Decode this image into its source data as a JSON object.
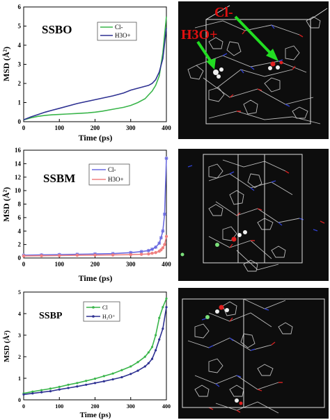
{
  "figure": {
    "panels": [
      {
        "title": "SSBO",
        "xlabel": "Time (ps)",
        "ylabel": "MSD (Å²)",
        "legend": [
          "Cl-",
          "H3O+"
        ],
        "image_labels": [
          "Cl-",
          "H3O+"
        ]
      },
      {
        "title": "SSBM",
        "xlabel": "Time (ps)",
        "ylabel": "MSD (Å²)",
        "legend": [
          "Cl-",
          "H3O+"
        ],
        "image_labels": []
      },
      {
        "title": "SSBP",
        "xlabel": "Time (ps)",
        "ylabel": "MSD (Å²)",
        "legend": [
          "Cl",
          "H₃O⁺"
        ],
        "image_labels": []
      }
    ]
  },
  "chart_data": [
    {
      "type": "line",
      "title": "SSBO",
      "xlabel": "Time (ps)",
      "ylabel": "MSD (Å²)",
      "xlim": [
        0,
        400
      ],
      "ylim": [
        0,
        6
      ],
      "xticks": [
        0,
        100,
        200,
        300,
        400
      ],
      "yticks": [
        0,
        1,
        2,
        3,
        4,
        5,
        6
      ],
      "grid": false,
      "legend_position": "top-right",
      "series": [
        {
          "name": "Cl-",
          "color": "#39b54a",
          "marker": "none",
          "x": [
            0,
            20,
            40,
            60,
            80,
            100,
            120,
            150,
            180,
            200,
            220,
            250,
            280,
            300,
            320,
            340,
            350,
            360,
            370,
            380,
            390,
            400
          ],
          "y": [
            0.1,
            0.2,
            0.28,
            0.33,
            0.36,
            0.38,
            0.4,
            0.43,
            0.46,
            0.5,
            0.55,
            0.65,
            0.75,
            0.85,
            1.0,
            1.2,
            1.4,
            1.6,
            1.9,
            2.4,
            3.6,
            5.5
          ]
        },
        {
          "name": "H3O+",
          "color": "#2e3192",
          "marker": "none",
          "x": [
            0,
            20,
            40,
            60,
            80,
            100,
            150,
            200,
            250,
            280,
            300,
            320,
            340,
            350,
            360,
            370,
            380,
            390,
            400
          ],
          "y": [
            0.1,
            0.25,
            0.37,
            0.5,
            0.6,
            0.7,
            0.95,
            1.15,
            1.35,
            1.5,
            1.65,
            1.75,
            1.85,
            1.9,
            2.0,
            2.2,
            2.6,
            3.3,
            4.9
          ]
        }
      ]
    },
    {
      "type": "line",
      "title": "SSBM",
      "xlabel": "Time (ps)",
      "ylabel": "MSD (Å²)",
      "xlim": [
        0,
        400
      ],
      "ylim": [
        0,
        16
      ],
      "xticks": [
        0,
        100,
        200,
        300,
        400
      ],
      "yticks": [
        0,
        2,
        4,
        6,
        8,
        10,
        12,
        14,
        16
      ],
      "grid": false,
      "legend_position": "top-right",
      "series": [
        {
          "name": "Cl-",
          "color": "#6a6ae0",
          "marker": "star",
          "x": [
            0,
            50,
            100,
            150,
            200,
            250,
            300,
            330,
            350,
            360,
            370,
            380,
            385,
            390,
            395,
            400
          ],
          "y": [
            0.4,
            0.45,
            0.5,
            0.55,
            0.6,
            0.65,
            0.8,
            0.95,
            1.1,
            1.3,
            1.6,
            2.2,
            3.0,
            4.0,
            6.5,
            14.8
          ]
        },
        {
          "name": "H3O+",
          "color": "#f08080",
          "marker": "circle",
          "x": [
            0,
            50,
            100,
            150,
            200,
            250,
            300,
            330,
            350,
            360,
            370,
            380,
            385,
            390,
            395,
            400
          ],
          "y": [
            0.3,
            0.33,
            0.36,
            0.4,
            0.42,
            0.45,
            0.5,
            0.55,
            0.6,
            0.7,
            0.8,
            1.0,
            1.2,
            1.5,
            2.0,
            3.2
          ]
        }
      ]
    },
    {
      "type": "line",
      "title": "SSBP",
      "xlabel": "Time (ps)",
      "ylabel": "MSD (Å²)",
      "xlim": [
        0,
        400
      ],
      "ylim": [
        0,
        5
      ],
      "xticks": [
        0,
        100,
        200,
        300,
        400
      ],
      "yticks": [
        0,
        1,
        2,
        3,
        4,
        5
      ],
      "grid": false,
      "legend_position": "top-right",
      "series": [
        {
          "name": "Cl",
          "color": "#39b54a",
          "marker": "dot",
          "x": [
            0,
            25,
            50,
            75,
            100,
            125,
            150,
            175,
            200,
            225,
            250,
            275,
            300,
            320,
            340,
            350,
            360,
            370,
            380,
            390,
            400
          ],
          "y": [
            0.3,
            0.38,
            0.45,
            0.52,
            0.6,
            0.7,
            0.78,
            0.88,
            0.98,
            1.1,
            1.22,
            1.38,
            1.55,
            1.75,
            2.0,
            2.2,
            2.45,
            3.0,
            3.8,
            4.3,
            4.7
          ]
        },
        {
          "name": "H₃O⁺",
          "color": "#2e3192",
          "marker": "dot",
          "x": [
            0,
            25,
            50,
            75,
            100,
            125,
            150,
            175,
            200,
            225,
            250,
            275,
            300,
            320,
            340,
            350,
            360,
            370,
            380,
            390,
            400
          ],
          "y": [
            0.25,
            0.3,
            0.35,
            0.4,
            0.48,
            0.55,
            0.62,
            0.7,
            0.78,
            0.86,
            0.95,
            1.05,
            1.2,
            1.35,
            1.55,
            1.7,
            1.9,
            2.3,
            2.8,
            3.3,
            4.3
          ]
        }
      ]
    }
  ]
}
